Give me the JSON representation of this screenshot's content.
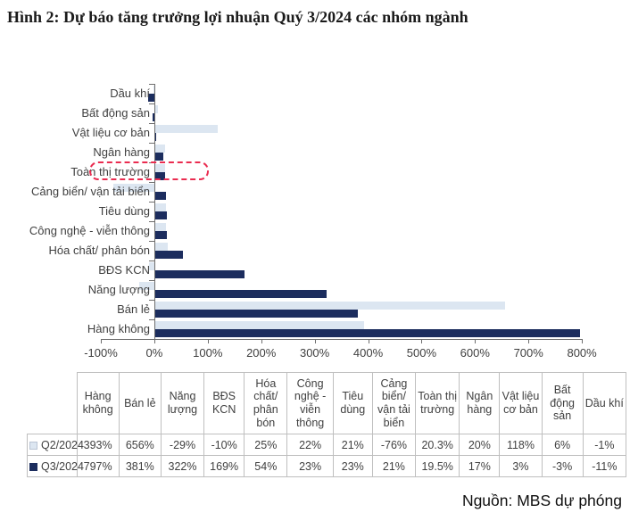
{
  "title": "Hình 2: Dự báo tăng trưởng lợi nhuận Quý 3/2024 các nhóm ngành",
  "source": "Nguồn: MBS dự phóng",
  "colors": {
    "q2": "#dce6f1",
    "q3": "#1c2d5e",
    "highlight": "#ea2c50",
    "table_border": "#bfbfbf"
  },
  "chart_data": {
    "type": "bar",
    "orientation": "horizontal",
    "title": "Hình 2: Dự báo tăng trưởng lợi nhuận Quý 3/2024 các nhóm ngành",
    "categories_top_to_bottom": [
      "Dầu khí",
      "Bất động sản",
      "Vật liệu cơ bản",
      "Ngân hàng",
      "Toàn thị trường",
      "Cảng biển/ vận tải biển",
      "Tiêu dùng",
      "Công nghệ - viễn thông",
      "Hóa chất/ phân bón",
      "BĐS KCN",
      "Năng lượng",
      "Bán lẻ",
      "Hàng không"
    ],
    "series": [
      {
        "name": "Q2/2024",
        "values": [
          -1,
          6,
          118,
          20,
          20.3,
          -76,
          21,
          22,
          25,
          -10,
          -29,
          656,
          393
        ]
      },
      {
        "name": "Q3/2024",
        "values": [
          -11,
          -3,
          3,
          17,
          19.5,
          21,
          23,
          23,
          54,
          169,
          322,
          381,
          797
        ]
      }
    ],
    "xlim": [
      -100,
      800
    ],
    "x_tick_labels": [
      "-100%",
      "0%",
      "100%",
      "200%",
      "300%",
      "400%",
      "500%",
      "600%",
      "700%",
      "800%"
    ],
    "highlighted_category": "Toàn thị trường",
    "grid": false,
    "legend_position": "table-below"
  },
  "table": {
    "columns": [
      "Hàng không",
      "Bán lẻ",
      "Năng lượng",
      "BĐS KCN",
      "Hóa chất/ phân bón",
      "Công nghệ - viễn thông",
      "Tiêu dùng",
      "Cảng biển/ vận tải biển",
      "Toàn thị trường",
      "Ngân hàng",
      "Vật liệu cơ bản",
      "Bất động sản",
      "Dầu khí"
    ],
    "rows": [
      {
        "label": "Q2/2024",
        "values": [
          "393%",
          "656%",
          "-29%",
          "-10%",
          "25%",
          "22%",
          "21%",
          "-76%",
          "20.3%",
          "20%",
          "118%",
          "6%",
          "-1%"
        ]
      },
      {
        "label": "Q3/2024",
        "values": [
          "797%",
          "381%",
          "322%",
          "169%",
          "54%",
          "23%",
          "23%",
          "21%",
          "19.5%",
          "17%",
          "3%",
          "-3%",
          "-11%"
        ]
      }
    ]
  }
}
